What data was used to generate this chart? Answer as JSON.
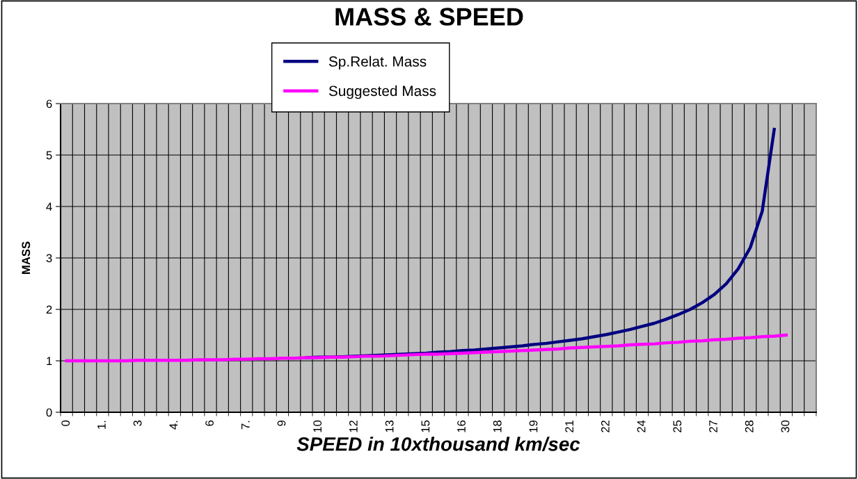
{
  "chart_data": {
    "type": "line",
    "title": "MASS & SPEED",
    "xlabel": "SPEED in 10xthousand km/sec",
    "ylabel": "MASS",
    "categories": [
      "0",
      null,
      null,
      "1.",
      null,
      null,
      "3",
      null,
      null,
      "4.",
      null,
      null,
      "6",
      null,
      null,
      "7.",
      null,
      null,
      "9",
      null,
      null,
      "10",
      null,
      null,
      "12",
      null,
      null,
      "13",
      null,
      null,
      "15",
      null,
      null,
      "16",
      null,
      null,
      "18",
      null,
      null,
      "19",
      null,
      null,
      "21",
      null,
      null,
      "22",
      null,
      null,
      "24",
      null,
      null,
      "25",
      null,
      null,
      "27",
      null,
      null,
      "28",
      null,
      null,
      "30",
      null,
      null
    ],
    "series": [
      {
        "name": "Sp.Relat. Mass",
        "color": "#000080",
        "values": [
          null,
          null,
          null,
          null,
          null,
          null,
          null,
          null,
          null,
          null,
          null,
          null,
          null,
          null,
          null,
          null,
          null,
          null,
          null,
          null,
          1.06,
          1.07,
          1.07,
          1.08,
          1.09,
          1.1,
          1.11,
          1.12,
          1.13,
          1.14,
          1.15,
          1.17,
          1.18,
          1.2,
          1.21,
          1.23,
          1.25,
          1.27,
          1.29,
          1.32,
          1.34,
          1.37,
          1.4,
          1.43,
          1.47,
          1.51,
          1.56,
          1.61,
          1.67,
          1.73,
          1.81,
          1.9,
          2.0,
          2.13,
          2.29,
          2.5,
          2.79,
          3.2,
          3.91,
          5.5,
          null,
          null,
          null
        ]
      },
      {
        "name": "Suggested Mass",
        "color": "#ff00ff",
        "values": [
          1.0,
          1.0,
          1.0,
          1.0,
          1.0,
          1.0,
          1.01,
          1.01,
          1.01,
          1.01,
          1.01,
          1.02,
          1.02,
          1.02,
          1.03,
          1.03,
          1.04,
          1.04,
          1.05,
          1.05,
          1.06,
          1.06,
          1.07,
          1.07,
          1.08,
          1.09,
          1.09,
          1.1,
          1.11,
          1.12,
          1.13,
          1.13,
          1.14,
          1.15,
          1.16,
          1.17,
          1.18,
          1.19,
          1.2,
          1.21,
          1.22,
          1.23,
          1.25,
          1.26,
          1.27,
          1.28,
          1.29,
          1.31,
          1.32,
          1.33,
          1.35,
          1.36,
          1.38,
          1.39,
          1.41,
          1.42,
          1.44,
          1.45,
          1.47,
          1.48,
          1.5,
          null,
          null
        ]
      }
    ],
    "ylim": [
      0,
      6
    ],
    "yticks": [
      0,
      1,
      2,
      3,
      4,
      5,
      6
    ],
    "grid": true,
    "legend": "top left",
    "marker": "none",
    "line_style": "solid"
  }
}
